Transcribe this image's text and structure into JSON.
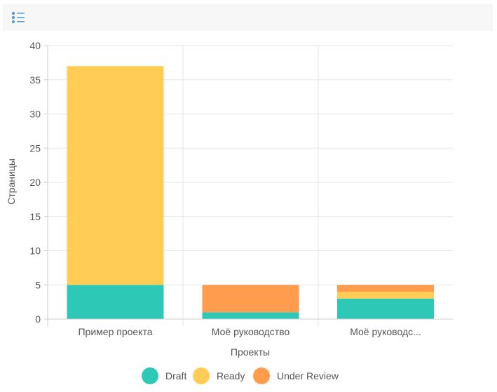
{
  "toolbar": {
    "icon": "list-legend-icon"
  },
  "colors": {
    "draft": "#2ec9b6",
    "ready": "#ffcc55",
    "review": "#ff9c4d",
    "grid": "#e6e6e6",
    "axis": "#cccccc"
  },
  "chart_data": {
    "type": "bar",
    "stacked": true,
    "categories": [
      "Пример проекта",
      "Моё руководство",
      "Моё руководс..."
    ],
    "series": [
      {
        "name": "Draft",
        "values": [
          5,
          1,
          3
        ]
      },
      {
        "name": "Ready",
        "values": [
          32,
          0,
          1
        ]
      },
      {
        "name": "Under Review",
        "values": [
          0,
          4,
          1
        ]
      }
    ],
    "xlabel": "Проекты",
    "ylabel": "Страницы",
    "ylim": [
      0,
      40
    ],
    "yticks": [
      0,
      5,
      10,
      15,
      20,
      25,
      30,
      35,
      40
    ],
    "grid": true,
    "legend": "bottom"
  }
}
